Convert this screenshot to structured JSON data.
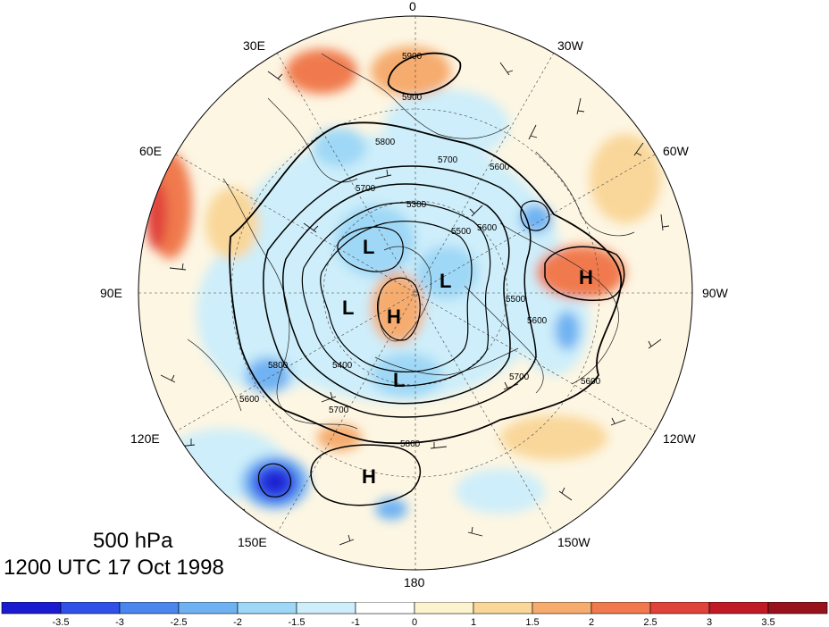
{
  "title": {
    "level": "500 hPa",
    "valid_time": "1200 UTC 17 Oct 1998"
  },
  "longitude_labels": [
    "0",
    "30W",
    "60W",
    "90W",
    "120W",
    "150W",
    "180",
    "150E",
    "120E",
    "90E",
    "60E",
    "30E"
  ],
  "contour_labels": [
    "5900",
    "5900",
    "5800",
    "5700",
    "5600",
    "5700",
    "5600",
    "5800",
    "5500",
    "5700",
    "5600",
    "5800",
    "5700",
    "5600",
    "5400",
    "5600",
    "5500",
    "5300"
  ],
  "centers": [
    {
      "type": "H",
      "name": "high-center-pole"
    },
    {
      "type": "H",
      "name": "high-center-north-america"
    },
    {
      "type": "H",
      "name": "high-center-north-pacific"
    },
    {
      "type": "L",
      "name": "low-center-siberia"
    },
    {
      "type": "L",
      "name": "low-center-central-asia"
    },
    {
      "type": "L",
      "name": "low-center-canada"
    },
    {
      "type": "L",
      "name": "low-center-bering"
    }
  ],
  "colorbar": {
    "ticks": [
      "-3.5",
      "-3",
      "-2.5",
      "-2",
      "-1.5",
      "-1",
      "0",
      "1",
      "1.5",
      "2",
      "2.5",
      "3",
      "3.5"
    ],
    "colors": [
      "#1a1ad0",
      "#3050e8",
      "#4a86ee",
      "#6fb2f2",
      "#9fd8f6",
      "#cdeefa",
      "#ffffff",
      "#fdf3cf",
      "#f9d79a",
      "#f6ac6e",
      "#f07a4e",
      "#e0433a",
      "#c01a26",
      "#98121c"
    ]
  },
  "colors": {
    "contour": "#000000",
    "map_background": "#fdf6e3"
  }
}
